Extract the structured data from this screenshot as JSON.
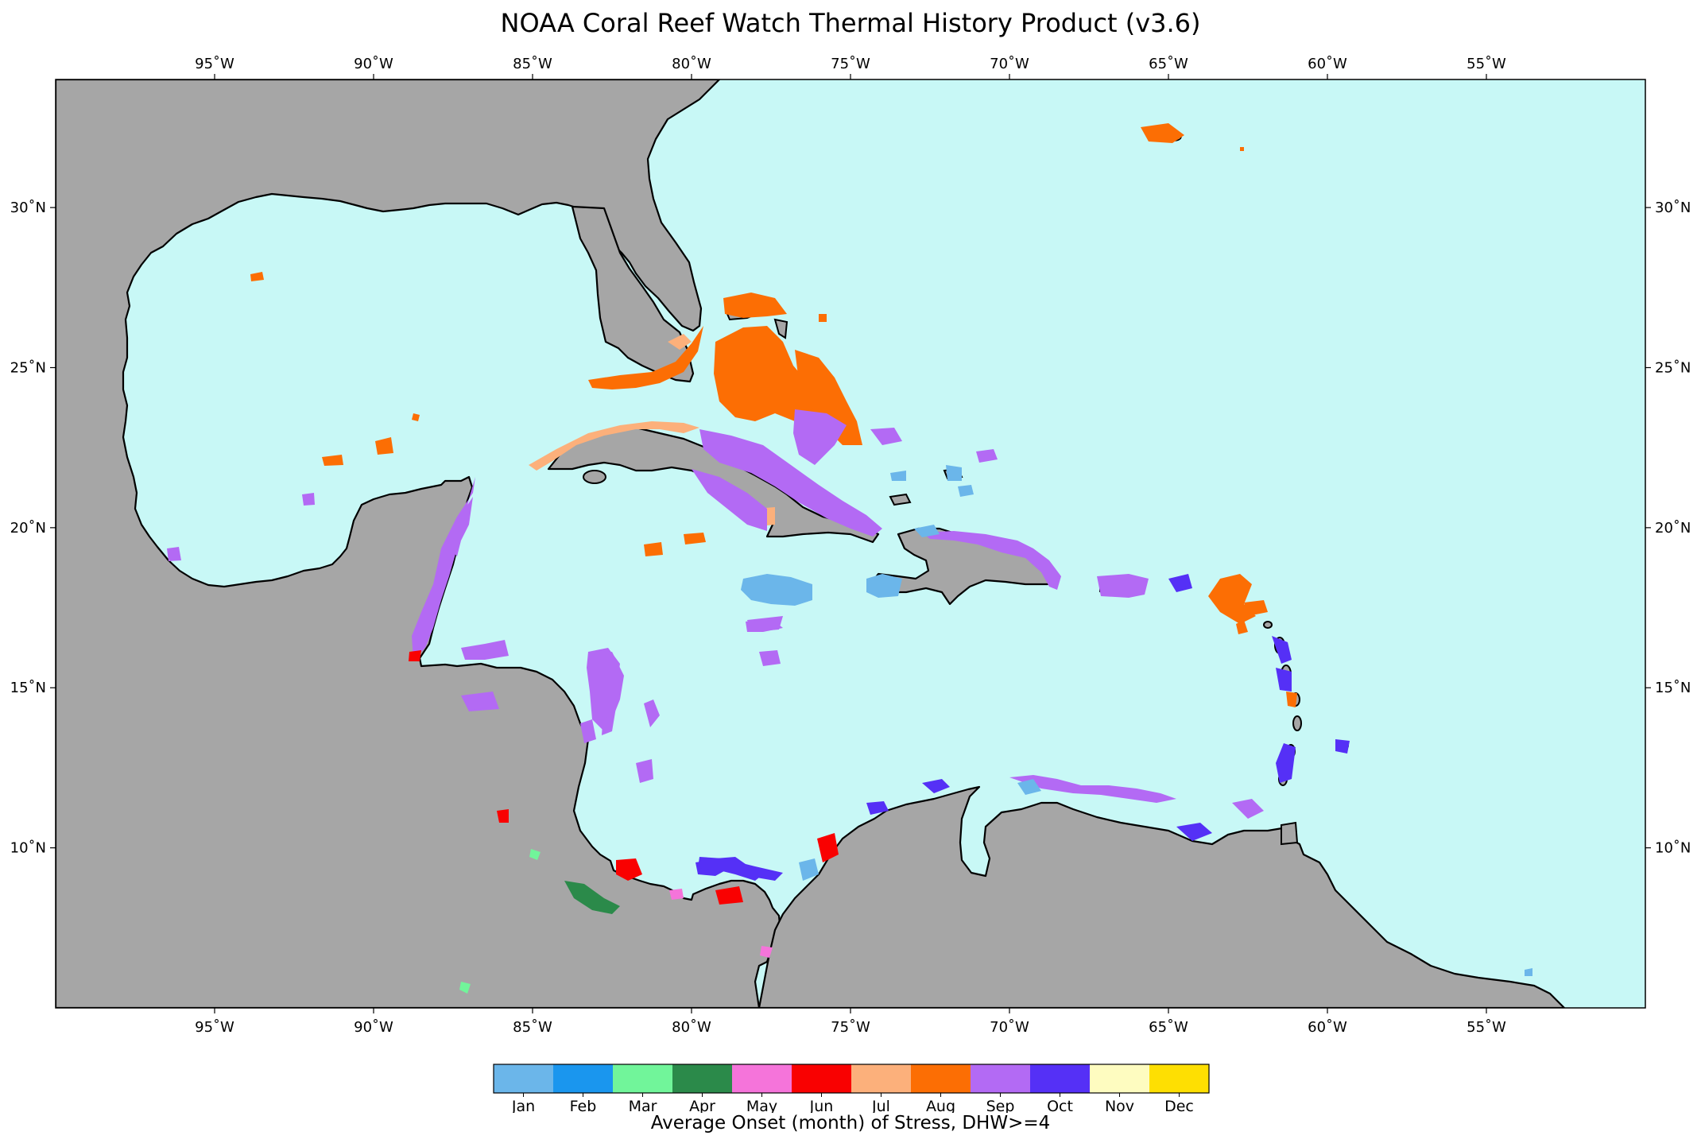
{
  "title": "NOAA Coral Reef Watch Thermal History Product (v3.6)",
  "map": {
    "colors": {
      "ocean": "#c8f8f6",
      "land": "#a6a6a6",
      "coast": "#000000"
    },
    "lon_range": [
      -100,
      -50
    ],
    "lat_range": [
      5,
      34
    ],
    "lon_ticks": [
      {
        "value": -95,
        "label": "95˚W"
      },
      {
        "value": -90,
        "label": "90˚W"
      },
      {
        "value": -85,
        "label": "85˚W"
      },
      {
        "value": -80,
        "label": "80˚W"
      },
      {
        "value": -75,
        "label": "75˚W"
      },
      {
        "value": -70,
        "label": "70˚W"
      },
      {
        "value": -65,
        "label": "65˚W"
      },
      {
        "value": -60,
        "label": "60˚W"
      },
      {
        "value": -55,
        "label": "55˚W"
      }
    ],
    "lat_ticks": [
      {
        "value": 30,
        "label": "30˚N"
      },
      {
        "value": 25,
        "label": "25˚N"
      },
      {
        "value": 20,
        "label": "20˚N"
      },
      {
        "value": 15,
        "label": "15˚N"
      },
      {
        "value": 10,
        "label": "10˚N"
      }
    ]
  },
  "colorbar": {
    "title": "Average Onset (month) of Stress, DHW>=4",
    "items": [
      {
        "label": "Jan",
        "color": "#6bb6ea"
      },
      {
        "label": "Feb",
        "color": "#1a96ee"
      },
      {
        "label": "Mar",
        "color": "#71f59a"
      },
      {
        "label": "Apr",
        "color": "#2b8a4a"
      },
      {
        "label": "May",
        "color": "#f574da"
      },
      {
        "label": "Jun",
        "color": "#f90101"
      },
      {
        "label": "Jul",
        "color": "#fcb07b"
      },
      {
        "label": "Aug",
        "color": "#fc6e04"
      },
      {
        "label": "Sep",
        "color": "#b36af4"
      },
      {
        "label": "Oct",
        "color": "#5530f6"
      },
      {
        "label": "Nov",
        "color": "#fefcc0"
      },
      {
        "label": "Dec",
        "color": "#fedf02"
      }
    ]
  }
}
